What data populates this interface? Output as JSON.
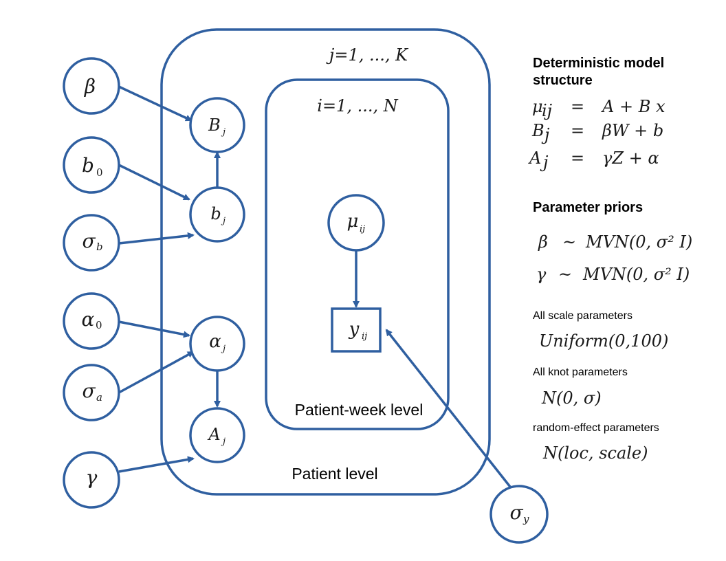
{
  "plates": {
    "outer_index": "j=1, ..., K",
    "inner_index": "i=1, ..., N",
    "outer_label": "Patient level",
    "inner_label": "Patient-week level"
  },
  "nodes": {
    "beta": {
      "sym": "β",
      "sub": ""
    },
    "b0": {
      "sym": "b",
      "sub": "0"
    },
    "sigma_b": {
      "sym": "σ",
      "sub": "b"
    },
    "alpha0": {
      "sym": "α",
      "sub": "0"
    },
    "sigma_a": {
      "sym": "σ",
      "sub": "a"
    },
    "gamma": {
      "sym": "γ",
      "sub": ""
    },
    "Bj": {
      "sym": "B",
      "sub": "j"
    },
    "bj": {
      "sym": "b",
      "sub": "j"
    },
    "alphaj": {
      "sym": "α",
      "sub": "j"
    },
    "Aj": {
      "sym": "A",
      "sub": "j"
    },
    "mu": {
      "sym": "μ",
      "sub": "ij"
    },
    "y": {
      "sym": "y",
      "sub": "ij"
    },
    "sigma_y": {
      "sym": "σ",
      "sub": "y"
    }
  },
  "sidebar": {
    "structure_heading_1": "Deterministic model",
    "structure_heading_2": "structure",
    "equations": [
      {
        "lhs": "μ",
        "lhs_sub": "ij",
        "eq": "=",
        "rhs": "A + B x"
      },
      {
        "lhs": "B",
        "lhs_sub": "j",
        "eq": "=",
        "rhs": "βW + b"
      },
      {
        "lhs": "A",
        "lhs_sub": "j",
        "eq": "=",
        "rhs": "γZ + α"
      }
    ],
    "priors_heading": "Parameter priors",
    "priors": [
      {
        "lhs": "β",
        "rel": "~",
        "rhs": "MVN(0, σ² I)"
      },
      {
        "lhs": "γ",
        "rel": "~",
        "rhs": "MVN(0, σ² I)"
      }
    ],
    "scale_label": "All scale parameters",
    "scale_prior": "Uniform(0,100)",
    "knot_label": "All knot parameters",
    "knot_prior": "N(0, σ)",
    "random_label": "random-effect parameters",
    "random_prior": "N(loc, scale)"
  },
  "colors": {
    "accent": "#2f5fa0"
  }
}
